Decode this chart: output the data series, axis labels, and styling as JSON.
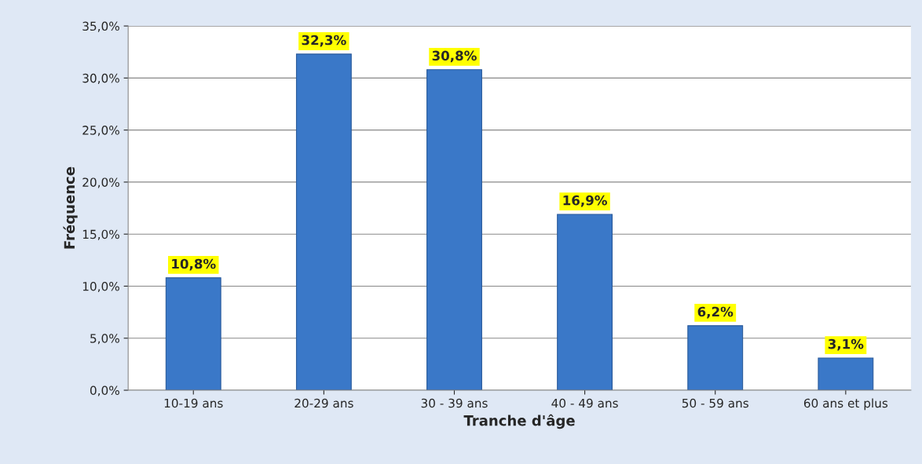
{
  "chart_data": {
    "type": "bar",
    "xlabel": "Tranche d'âge",
    "ylabel": "Fréquence",
    "categories": [
      "10-19 ans",
      "20-29 ans",
      "30 - 39 ans",
      "40 - 49 ans",
      "50 - 59 ans",
      "60 ans et plus"
    ],
    "values": [
      10.8,
      32.3,
      30.8,
      16.9,
      6.2,
      3.1
    ],
    "value_labels": [
      "10,8%",
      "32,3%",
      "30,8%",
      "16,9%",
      "6,2%",
      "3,1%"
    ],
    "color": "#3a78c8",
    "ylim": [
      0,
      35
    ],
    "yticks": [
      {
        "value": 0,
        "label": "0,0%"
      },
      {
        "value": 5,
        "label": "5,0%"
      },
      {
        "value": 10,
        "label": "10,0%"
      },
      {
        "value": 15,
        "label": "15,0%"
      },
      {
        "value": 20,
        "label": "20,0%"
      },
      {
        "value": 25,
        "label": "25,0%"
      },
      {
        "value": 30,
        "label": "30,0%"
      },
      {
        "value": 35,
        "label": "35,0%"
      }
    ],
    "grid": "y",
    "legend": false
  }
}
